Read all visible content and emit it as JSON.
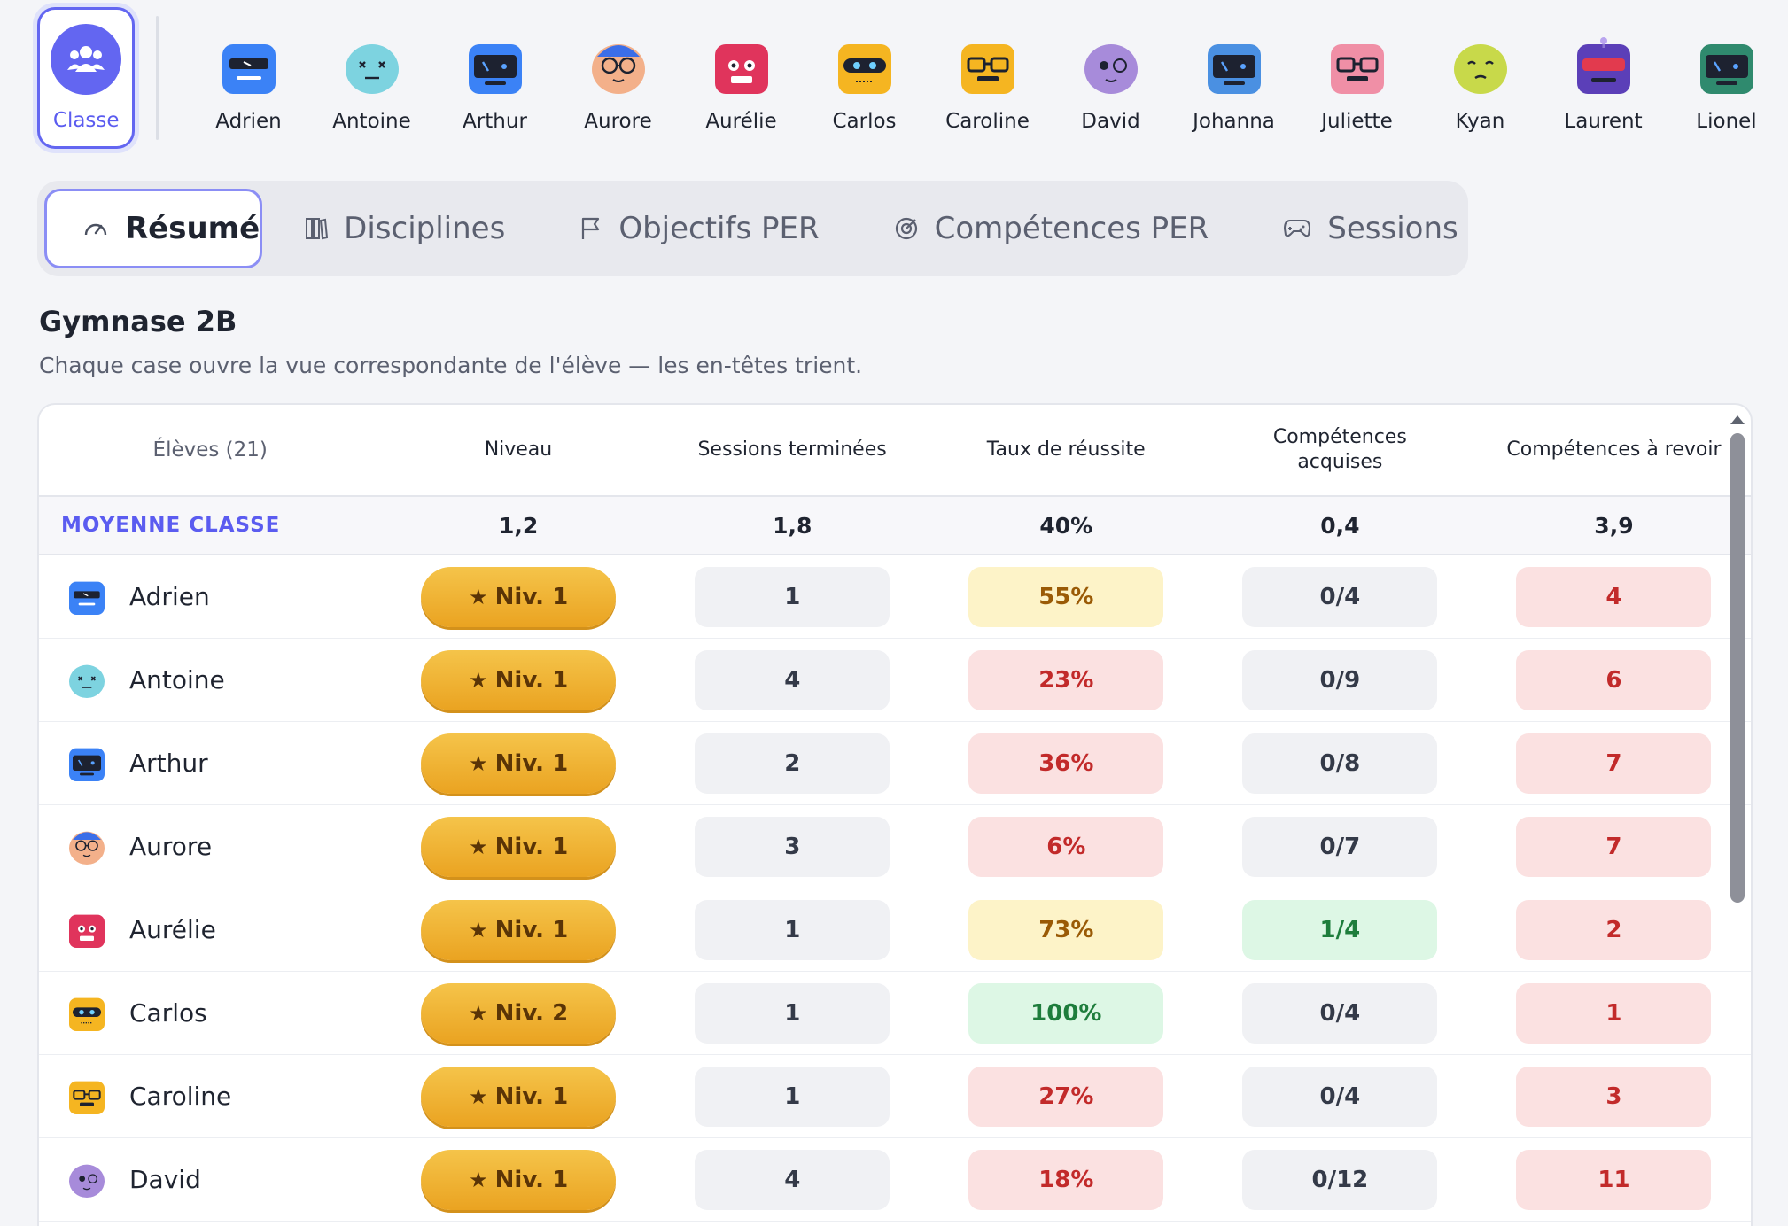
{
  "strip": {
    "classe_label": "Classe",
    "students": [
      {
        "name": "Adrien",
        "color": "#3b82f6",
        "face": "visor"
      },
      {
        "name": "Antoine",
        "color": "#7dd3e0",
        "face": "x-eyes"
      },
      {
        "name": "Arthur",
        "color": "#3b82f6",
        "face": "screen"
      },
      {
        "name": "Aurore",
        "color": "#f3b08a",
        "face": "glasses-cap"
      },
      {
        "name": "Aurélie",
        "color": "#e0345c",
        "face": "eyes"
      },
      {
        "name": "Carlos",
        "color": "#f5b521",
        "face": "goggles"
      },
      {
        "name": "Caroline",
        "color": "#f5b521",
        "face": "glasses"
      },
      {
        "name": "David",
        "color": "#a78bda",
        "face": "monocle"
      },
      {
        "name": "Johanna",
        "color": "#4a90e2",
        "face": "screen"
      },
      {
        "name": "Juliette",
        "color": "#f08fa6",
        "face": "glasses"
      },
      {
        "name": "Kyan",
        "color": "#c8d94a",
        "face": "sleepy"
      },
      {
        "name": "Laurent",
        "color": "#5b3fb8",
        "face": "visor-red"
      },
      {
        "name": "Lionel",
        "color": "#2f8a6e",
        "face": "screen"
      }
    ]
  },
  "tabs": [
    {
      "label": "Résumé",
      "icon": "gauge-icon",
      "active": true
    },
    {
      "label": "Disciplines",
      "icon": "books-icon"
    },
    {
      "label": "Objectifs PER",
      "icon": "flag-icon"
    },
    {
      "label": "Compétences PER",
      "icon": "target-icon"
    },
    {
      "label": "Sessions",
      "icon": "gamepad-icon"
    }
  ],
  "page": {
    "title": "Gymnase 2B",
    "subtitle": "Chaque case ouvre la vue correspondante de l'élève — les en-têtes trient."
  },
  "table": {
    "headers": {
      "students": "Élèves (21)",
      "level": "Niveau",
      "sessions": "Sessions terminées",
      "rate": "Taux de réussite",
      "acquired_line1": "Compétences",
      "acquired_line2": "acquises",
      "review": "Compétences à revoir"
    },
    "average": {
      "label": "MOYENNE CLASSE",
      "level": "1,2",
      "sessions": "1,8",
      "rate": "40%",
      "acquired": "0,4",
      "review": "3,9"
    },
    "rows": [
      {
        "name": "Adrien",
        "level": "Niv. 1",
        "sessions": "1",
        "rate": "55%",
        "rate_tone": "yellow",
        "acquired": "0/4",
        "acquired_tone": "gray",
        "review": "4"
      },
      {
        "name": "Antoine",
        "level": "Niv. 1",
        "sessions": "4",
        "rate": "23%",
        "rate_tone": "red",
        "acquired": "0/9",
        "acquired_tone": "gray",
        "review": "6"
      },
      {
        "name": "Arthur",
        "level": "Niv. 1",
        "sessions": "2",
        "rate": "36%",
        "rate_tone": "red",
        "acquired": "0/8",
        "acquired_tone": "gray",
        "review": "7"
      },
      {
        "name": "Aurore",
        "level": "Niv. 1",
        "sessions": "3",
        "rate": "6%",
        "rate_tone": "red",
        "acquired": "0/7",
        "acquired_tone": "gray",
        "review": "7"
      },
      {
        "name": "Aurélie",
        "level": "Niv. 1",
        "sessions": "1",
        "rate": "73%",
        "rate_tone": "yellow",
        "acquired": "1/4",
        "acquired_tone": "green",
        "review": "2"
      },
      {
        "name": "Carlos",
        "level": "Niv. 2",
        "sessions": "1",
        "rate": "100%",
        "rate_tone": "green",
        "acquired": "0/4",
        "acquired_tone": "gray",
        "review": "1"
      },
      {
        "name": "Caroline",
        "level": "Niv. 1",
        "sessions": "1",
        "rate": "27%",
        "rate_tone": "red",
        "acquired": "0/4",
        "acquired_tone": "gray",
        "review": "3"
      },
      {
        "name": "David",
        "level": "Niv. 1",
        "sessions": "4",
        "rate": "18%",
        "rate_tone": "red",
        "acquired": "0/12",
        "acquired_tone": "gray",
        "review": "11"
      }
    ]
  }
}
